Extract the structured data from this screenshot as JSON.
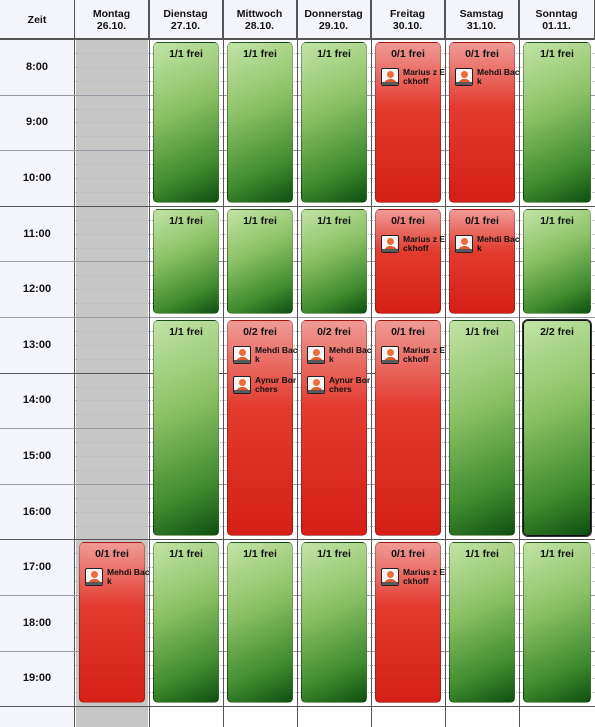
{
  "header": {
    "time_label": "Zeit",
    "days": [
      {
        "name": "Montag",
        "date": "26.10."
      },
      {
        "name": "Dienstag",
        "date": "27.10."
      },
      {
        "name": "Mittwoch",
        "date": "28.10."
      },
      {
        "name": "Donnerstag",
        "date": "29.10."
      },
      {
        "name": "Freitag",
        "date": "30.10."
      },
      {
        "name": "Samstag",
        "date": "31.10."
      },
      {
        "name": "Sonntag",
        "date": "01.11."
      }
    ]
  },
  "hours": [
    "8:00",
    "9:00",
    "10:00",
    "11:00",
    "12:00",
    "13:00",
    "14:00",
    "15:00",
    "16:00",
    "17:00",
    "18:00",
    "19:00"
  ],
  "colors": {
    "free": "#5fa040",
    "full": "#e0271d",
    "unavailable": "#c6c6c6"
  },
  "avatar_icon": "user-avatar-icon",
  "blocks": [
    {
      "day": 0,
      "start": 9,
      "end": 12,
      "status": "full",
      "label": "0/1 frei",
      "people": [
        "Mehdi Back"
      ]
    },
    {
      "day": 1,
      "start": 0,
      "end": 3,
      "status": "free",
      "label": "1/1 frei",
      "people": []
    },
    {
      "day": 1,
      "start": 3,
      "end": 5,
      "status": "free",
      "label": "1/1 frei",
      "people": []
    },
    {
      "day": 1,
      "start": 5,
      "end": 9,
      "status": "free",
      "label": "1/1 frei",
      "people": []
    },
    {
      "day": 1,
      "start": 9,
      "end": 12,
      "status": "free",
      "label": "1/1 frei",
      "people": []
    },
    {
      "day": 2,
      "start": 0,
      "end": 3,
      "status": "free",
      "label": "1/1 frei",
      "people": []
    },
    {
      "day": 2,
      "start": 3,
      "end": 5,
      "status": "free",
      "label": "1/1 frei",
      "people": []
    },
    {
      "day": 2,
      "start": 5,
      "end": 9,
      "status": "full",
      "label": "0/2 frei",
      "people": [
        "Mehdi Back",
        "Aynur Borchers"
      ]
    },
    {
      "day": 2,
      "start": 9,
      "end": 12,
      "status": "free",
      "label": "1/1 frei",
      "people": []
    },
    {
      "day": 3,
      "start": 0,
      "end": 3,
      "status": "free",
      "label": "1/1 frei",
      "people": []
    },
    {
      "day": 3,
      "start": 3,
      "end": 5,
      "status": "free",
      "label": "1/1 frei",
      "people": []
    },
    {
      "day": 3,
      "start": 5,
      "end": 9,
      "status": "full",
      "label": "0/2 frei",
      "people": [
        "Mehdi Back",
        "Aynur Borchers"
      ]
    },
    {
      "day": 3,
      "start": 9,
      "end": 12,
      "status": "free",
      "label": "1/1 frei",
      "people": []
    },
    {
      "day": 4,
      "start": 0,
      "end": 3,
      "status": "full",
      "label": "0/1 frei",
      "people": [
        "Marius z Eckhoff"
      ]
    },
    {
      "day": 4,
      "start": 3,
      "end": 5,
      "status": "full",
      "label": "0/1 frei",
      "people": [
        "Marius z Eckhoff"
      ]
    },
    {
      "day": 4,
      "start": 5,
      "end": 9,
      "status": "full",
      "label": "0/1 frei",
      "people": [
        "Marius z Eckhoff"
      ]
    },
    {
      "day": 4,
      "start": 9,
      "end": 12,
      "status": "full",
      "label": "0/1 frei",
      "people": [
        "Marius z Eckhoff"
      ]
    },
    {
      "day": 5,
      "start": 0,
      "end": 3,
      "status": "full",
      "label": "0/1 frei",
      "people": [
        "Mehdi Back"
      ]
    },
    {
      "day": 5,
      "start": 3,
      "end": 5,
      "status": "full",
      "label": "0/1 frei",
      "people": [
        "Mehdi Back"
      ]
    },
    {
      "day": 5,
      "start": 5,
      "end": 9,
      "status": "free",
      "label": "1/1 frei",
      "people": []
    },
    {
      "day": 5,
      "start": 9,
      "end": 12,
      "status": "free",
      "label": "1/1 frei",
      "people": []
    },
    {
      "day": 6,
      "start": 0,
      "end": 3,
      "status": "free",
      "label": "1/1 frei",
      "people": []
    },
    {
      "day": 6,
      "start": 3,
      "end": 5,
      "status": "free",
      "label": "1/1 frei",
      "people": []
    },
    {
      "day": 6,
      "start": 5,
      "end": 9,
      "status": "free",
      "label": "2/2 frei",
      "people": []
    },
    {
      "day": 6,
      "start": 9,
      "end": 12,
      "status": "free",
      "label": "1/1 frei",
      "people": []
    }
  ]
}
